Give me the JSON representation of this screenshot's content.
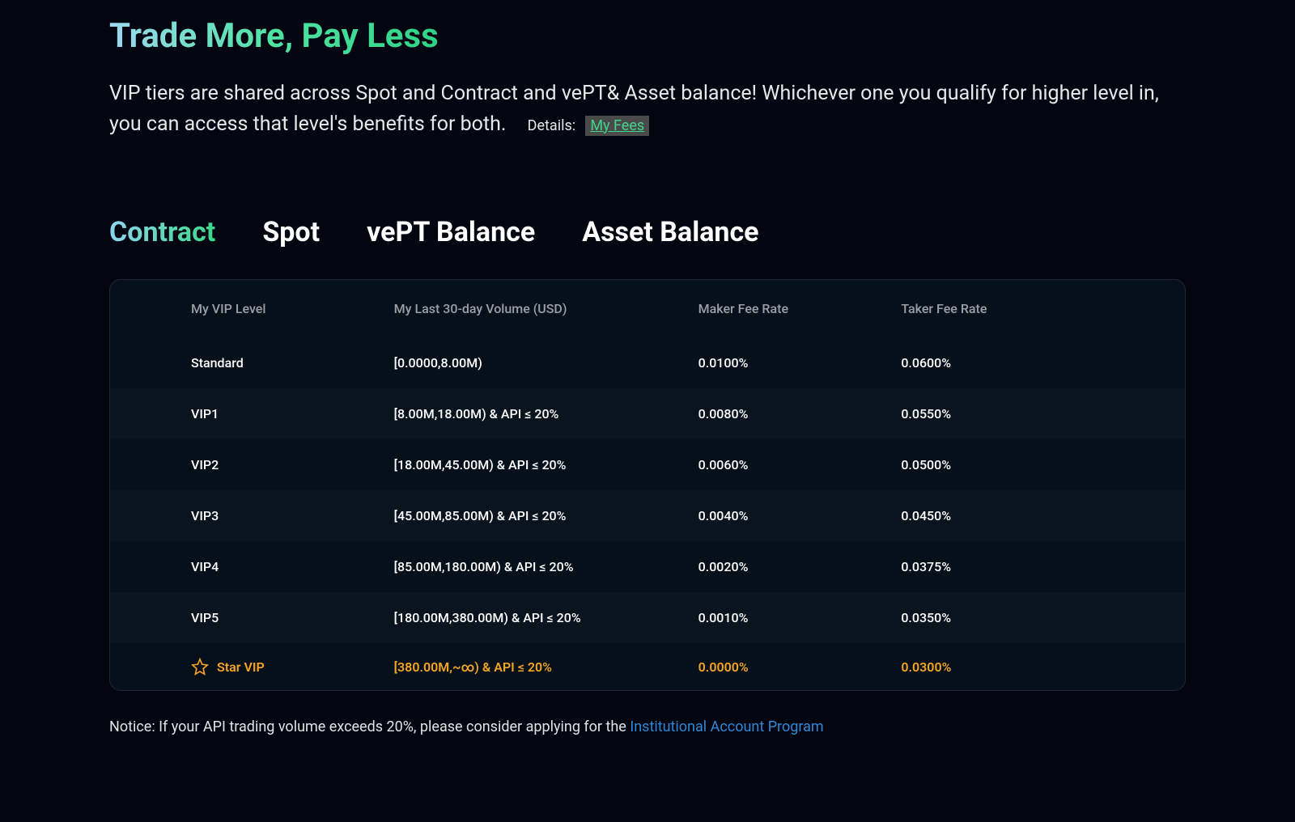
{
  "header": {
    "title": "Trade More, Pay Less",
    "subtitle_part1": "VIP tiers are shared across Spot and Contract and vePT& Asset balance! Whichever one you qualify for higher level in, you can access that level's benefits for both.",
    "details_label": "Details:",
    "my_fees": "My Fees"
  },
  "tabs": [
    {
      "label": "Contract",
      "active": true
    },
    {
      "label": "Spot",
      "active": false
    },
    {
      "label": "vePT Balance",
      "active": false
    },
    {
      "label": "Asset Balance",
      "active": false
    }
  ],
  "table": {
    "columns": {
      "level": "My VIP Level",
      "volume": "My Last 30-day Volume (USD)",
      "maker": "Maker Fee Rate",
      "taker": "Taker Fee Rate"
    },
    "rows": [
      {
        "level": "Standard",
        "volume": "[0.0000,8.00M)",
        "maker": "0.0100%",
        "taker": "0.0600%",
        "star": false
      },
      {
        "level": "VIP1",
        "volume": "[8.00M,18.00M) & API ≤ 20%",
        "maker": "0.0080%",
        "taker": "0.0550%",
        "star": false
      },
      {
        "level": "VIP2",
        "volume": "[18.00M,45.00M) & API ≤ 20%",
        "maker": "0.0060%",
        "taker": "0.0500%",
        "star": false
      },
      {
        "level": "VIP3",
        "volume": "[45.00M,85.00M) & API ≤ 20%",
        "maker": "0.0040%",
        "taker": "0.0450%",
        "star": false
      },
      {
        "level": "VIP4",
        "volume": "[85.00M,180.00M) & API ≤ 20%",
        "maker": "0.0020%",
        "taker": "0.0375%",
        "star": false
      },
      {
        "level": "VIP5",
        "volume": "[180.00M,380.00M) & API ≤ 20%",
        "maker": "0.0010%",
        "taker": "0.0350%",
        "star": false
      },
      {
        "level": "Star VIP",
        "volume": "[380.00M,~∞) & API ≤ 20%",
        "maker": "0.0000%",
        "taker": "0.0300%",
        "star": true
      }
    ]
  },
  "notice": {
    "prefix": "Notice: If your API trading volume exceeds 20%, please consider applying for the ",
    "link": "Institutional Account Program"
  },
  "colors": {
    "bg": "#030510",
    "row_a": "#0a141e",
    "row_b": "#06101a",
    "border": "#1f2632",
    "accent_gold": "#f5a524",
    "accent_green": "#3fd68a",
    "link_blue": "#2f88d6",
    "text_muted": "#9aa0a8"
  }
}
